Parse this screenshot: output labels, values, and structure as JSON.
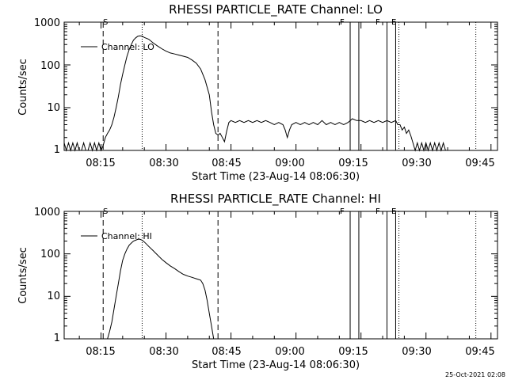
{
  "chart_data": [
    {
      "type": "line",
      "title": "RHESSI PARTICLE_RATE Channel: LO",
      "xlabel": "Start Time (23-Aug-14 08:06:30)",
      "ylabel": "Counts/sec",
      "yscale": "log",
      "ylim": [
        1,
        1000
      ],
      "xlim": [
        "08:06:30",
        "09:46:30"
      ],
      "x_ticks": [
        "08:15",
        "08:30",
        "08:45",
        "09:00",
        "09:15",
        "09:30",
        "09:45"
      ],
      "y_ticks": [
        "1",
        "10",
        "100",
        "1000"
      ],
      "legend": {
        "position": "top-left",
        "entries": [
          "Channel: LO"
        ]
      },
      "markers": [
        {
          "time": "08:15:30",
          "style": "dashed",
          "label": "S"
        },
        {
          "time": "08:24:30",
          "style": "dotted",
          "label": ""
        },
        {
          "time": "08:42:00",
          "style": "dashed",
          "label": ""
        },
        {
          "time": "09:12:30",
          "style": "solid",
          "label": "F"
        },
        {
          "time": "09:14:30",
          "style": "solid",
          "label": ""
        },
        {
          "time": "09:21:00",
          "style": "solid",
          "label": "F"
        },
        {
          "time": "09:23:00",
          "style": "solid",
          "label": ""
        },
        {
          "time": "09:23:45",
          "style": "dotted",
          "label": "E"
        },
        {
          "time": "09:41:30",
          "style": "dotted",
          "label": ""
        }
      ],
      "series": [
        {
          "name": "Channel: LO",
          "points": [
            [
              "08:06:30",
              1.5
            ],
            [
              "08:07:00",
              1
            ],
            [
              "08:07:30",
              1.5
            ],
            [
              "08:08:00",
              1
            ],
            [
              "08:08:30",
              1.5
            ],
            [
              "08:09:00",
              1
            ],
            [
              "08:09:30",
              1.5
            ],
            [
              "08:10:00",
              1
            ],
            [
              "08:10:30",
              1
            ],
            [
              "08:11:00",
              1.5
            ],
            [
              "08:11:30",
              1
            ],
            [
              "08:12:00",
              1
            ],
            [
              "08:12:30",
              1.5
            ],
            [
              "08:13:00",
              1
            ],
            [
              "08:13:30",
              1.5
            ],
            [
              "08:14:00",
              1
            ],
            [
              "08:14:30",
              1.5
            ],
            [
              "08:15:00",
              1
            ],
            [
              "08:15:30",
              1.3
            ],
            [
              "08:16:00",
              2
            ],
            [
              "08:16:30",
              2.5
            ],
            [
              "08:17:00",
              3
            ],
            [
              "08:17:30",
              4
            ],
            [
              "08:18:00",
              6
            ],
            [
              "08:18:30",
              10
            ],
            [
              "08:19:00",
              18
            ],
            [
              "08:19:30",
              35
            ],
            [
              "08:20:00",
              60
            ],
            [
              "08:20:30",
              100
            ],
            [
              "08:21:00",
              160
            ],
            [
              "08:21:30",
              230
            ],
            [
              "08:22:00",
              300
            ],
            [
              "08:22:30",
              380
            ],
            [
              "08:23:00",
              430
            ],
            [
              "08:23:30",
              470
            ],
            [
              "08:24:00",
              480
            ],
            [
              "08:24:30",
              470
            ],
            [
              "08:25:00",
              440
            ],
            [
              "08:26:00",
              400
            ],
            [
              "08:27:00",
              330
            ],
            [
              "08:28:00",
              280
            ],
            [
              "08:29:00",
              240
            ],
            [
              "08:30:00",
              210
            ],
            [
              "08:31:00",
              190
            ],
            [
              "08:32:00",
              180
            ],
            [
              "08:33:00",
              170
            ],
            [
              "08:34:00",
              160
            ],
            [
              "08:35:00",
              150
            ],
            [
              "08:36:00",
              130
            ],
            [
              "08:37:00",
              110
            ],
            [
              "08:38:00",
              80
            ],
            [
              "08:39:00",
              45
            ],
            [
              "08:40:00",
              20
            ],
            [
              "08:40:30",
              8
            ],
            [
              "08:41:00",
              4
            ],
            [
              "08:41:30",
              2.5
            ],
            [
              "08:42:00",
              2.3
            ],
            [
              "08:42:30",
              2.5
            ],
            [
              "08:43:00",
              2
            ],
            [
              "08:43:30",
              1.6
            ],
            [
              "08:44:00",
              2.8
            ],
            [
              "08:44:30",
              4.5
            ],
            [
              "08:45:00",
              5
            ],
            [
              "08:46:00",
              4.5
            ],
            [
              "08:47:00",
              5
            ],
            [
              "08:48:00",
              4.5
            ],
            [
              "08:49:00",
              5
            ],
            [
              "08:50:00",
              4.5
            ],
            [
              "08:51:00",
              5
            ],
            [
              "08:52:00",
              4.5
            ],
            [
              "08:53:00",
              5
            ],
            [
              "08:54:00",
              4.5
            ],
            [
              "08:55:00",
              4
            ],
            [
              "08:56:00",
              4.5
            ],
            [
              "08:57:00",
              4
            ],
            [
              "08:57:30",
              3
            ],
            [
              "08:58:00",
              2
            ],
            [
              "08:58:30",
              3
            ],
            [
              "08:59:00",
              4
            ],
            [
              "09:00:00",
              4.5
            ],
            [
              "09:01:00",
              4
            ],
            [
              "09:02:00",
              4.5
            ],
            [
              "09:03:00",
              4
            ],
            [
              "09:04:00",
              4.5
            ],
            [
              "09:05:00",
              4
            ],
            [
              "09:06:00",
              5
            ],
            [
              "09:07:00",
              4
            ],
            [
              "09:08:00",
              4.5
            ],
            [
              "09:09:00",
              4
            ],
            [
              "09:10:00",
              4.5
            ],
            [
              "09:11:00",
              4
            ],
            [
              "09:12:00",
              4.5
            ],
            [
              "09:13:00",
              5.5
            ],
            [
              "09:14:00",
              5
            ],
            [
              "09:15:00",
              5
            ],
            [
              "09:16:00",
              4.5
            ],
            [
              "09:17:00",
              5
            ],
            [
              "09:18:00",
              4.5
            ],
            [
              "09:19:00",
              5
            ],
            [
              "09:20:00",
              4.5
            ],
            [
              "09:21:00",
              5
            ],
            [
              "09:22:00",
              4.5
            ],
            [
              "09:23:00",
              5
            ],
            [
              "09:23:30",
              4
            ],
            [
              "09:24:00",
              4
            ],
            [
              "09:24:30",
              3
            ],
            [
              "09:25:00",
              3.5
            ],
            [
              "09:25:30",
              2.5
            ],
            [
              "09:26:00",
              3
            ],
            [
              "09:26:30",
              2.2
            ],
            [
              "09:27:00",
              1.5
            ],
            [
              "09:27:30",
              1
            ],
            [
              "09:28:00",
              1.5
            ],
            [
              "09:28:30",
              1
            ],
            [
              "09:29:00",
              1.5
            ],
            [
              "09:29:30",
              1
            ],
            [
              "09:30:00",
              1.5
            ],
            [
              "09:30:30",
              1
            ],
            [
              "09:31:00",
              1.5
            ],
            [
              "09:31:30",
              1
            ],
            [
              "09:32:00",
              1.5
            ],
            [
              "09:32:30",
              1
            ],
            [
              "09:33:00",
              1.5
            ],
            [
              "09:33:30",
              1
            ],
            [
              "09:34:00",
              1.5
            ],
            [
              "09:34:30",
              1
            ],
            [
              "09:35:00",
              1
            ],
            [
              "09:36:00",
              1
            ],
            [
              "09:40:00",
              1
            ],
            [
              "09:41:00",
              1
            ]
          ]
        }
      ]
    },
    {
      "type": "line",
      "title": "RHESSI PARTICLE_RATE Channel: HI",
      "xlabel": "Start Time (23-Aug-14 08:06:30)",
      "ylabel": "Counts/sec",
      "yscale": "log",
      "ylim": [
        1,
        1000
      ],
      "xlim": [
        "08:06:30",
        "09:46:30"
      ],
      "x_ticks": [
        "08:15",
        "08:30",
        "08:45",
        "09:00",
        "09:15",
        "09:30",
        "09:45"
      ],
      "y_ticks": [
        "1",
        "10",
        "100",
        "1000"
      ],
      "legend": {
        "position": "top-left",
        "entries": [
          "Channel: HI"
        ]
      },
      "markers": [
        {
          "time": "08:15:30",
          "style": "dashed",
          "label": "S"
        },
        {
          "time": "08:24:30",
          "style": "dotted",
          "label": ""
        },
        {
          "time": "08:42:00",
          "style": "dashed",
          "label": ""
        },
        {
          "time": "09:12:30",
          "style": "solid",
          "label": "F"
        },
        {
          "time": "09:14:30",
          "style": "solid",
          "label": ""
        },
        {
          "time": "09:21:00",
          "style": "solid",
          "label": "F"
        },
        {
          "time": "09:23:00",
          "style": "solid",
          "label": ""
        },
        {
          "time": "09:23:45",
          "style": "dotted",
          "label": "E"
        },
        {
          "time": "09:41:30",
          "style": "dotted",
          "label": ""
        }
      ],
      "series": [
        {
          "name": "Channel: HI",
          "points": [
            [
              "08:16:30",
              1
            ],
            [
              "08:17:00",
              1.5
            ],
            [
              "08:17:30",
              2.5
            ],
            [
              "08:18:00",
              5
            ],
            [
              "08:18:30",
              10
            ],
            [
              "08:19:00",
              20
            ],
            [
              "08:19:30",
              40
            ],
            [
              "08:20:00",
              70
            ],
            [
              "08:20:30",
              100
            ],
            [
              "08:21:00",
              130
            ],
            [
              "08:21:30",
              160
            ],
            [
              "08:22:00",
              180
            ],
            [
              "08:22:30",
              200
            ],
            [
              "08:23:00",
              210
            ],
            [
              "08:23:30",
              220
            ],
            [
              "08:24:00",
              220
            ],
            [
              "08:24:30",
              210
            ],
            [
              "08:25:00",
              190
            ],
            [
              "08:25:30",
              170
            ],
            [
              "08:26:00",
              150
            ],
            [
              "08:27:00",
              120
            ],
            [
              "08:28:00",
              95
            ],
            [
              "08:29:00",
              75
            ],
            [
              "08:30:00",
              62
            ],
            [
              "08:31:00",
              52
            ],
            [
              "08:32:00",
              45
            ],
            [
              "08:33:00",
              38
            ],
            [
              "08:34:00",
              33
            ],
            [
              "08:35:00",
              30
            ],
            [
              "08:36:00",
              28
            ],
            [
              "08:37:00",
              26
            ],
            [
              "08:38:00",
              24
            ],
            [
              "08:38:30",
              20
            ],
            [
              "08:39:00",
              14
            ],
            [
              "08:39:30",
              8
            ],
            [
              "08:40:00",
              4
            ],
            [
              "08:40:30",
              2
            ],
            [
              "08:41:00",
              1
            ]
          ]
        }
      ]
    }
  ],
  "timestamp": "25-Oct-2021 02:08"
}
